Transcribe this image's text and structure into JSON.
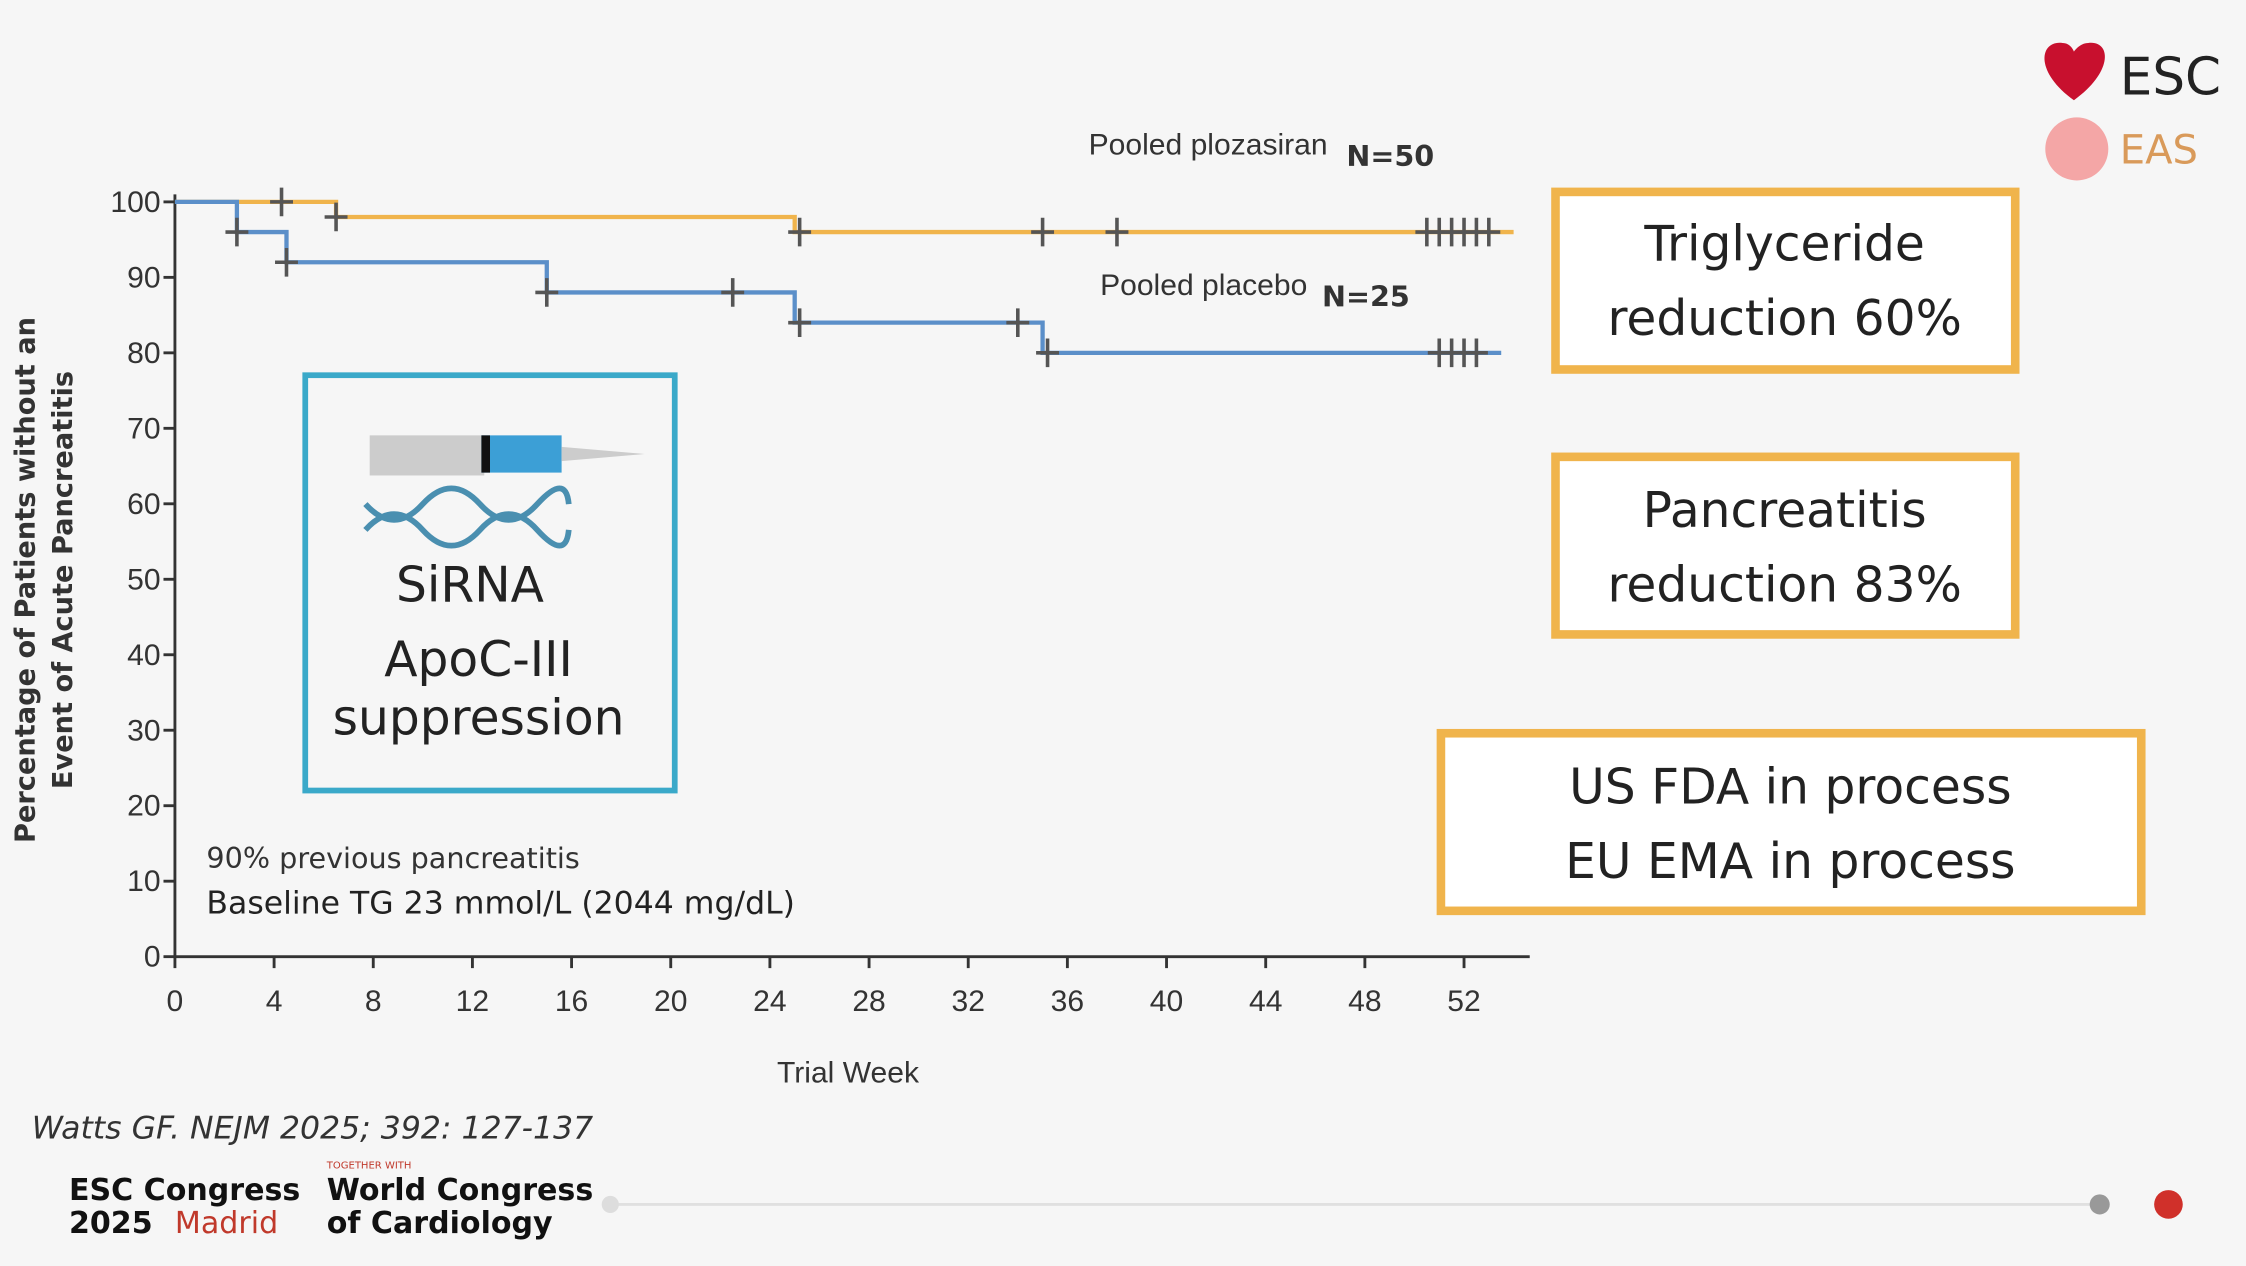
{
  "chart_data": {
    "type": "step-line",
    "ylabel": [
      "Percentage of Patients without an",
      "Event of Acute Pancreatitis"
    ],
    "xlabel": "Trial Week",
    "xlim": [
      0,
      54.65
    ],
    "xticks": [
      0,
      4,
      8,
      12,
      16,
      20,
      24,
      28,
      32,
      36,
      40,
      44,
      48,
      52
    ],
    "ylim": [
      0,
      101
    ],
    "yticks": [
      0,
      10,
      20,
      30,
      40,
      50,
      60,
      70,
      80,
      90,
      100
    ],
    "series": [
      {
        "name": "Pooled plozasiran",
        "n_label": "N=50",
        "color": "#f0b44c",
        "x": [
          0,
          6.5,
          25,
          54
        ],
        "values": [
          100,
          98,
          96,
          96
        ],
        "censored": {
          "x": [
            4.3,
            6.5,
            25.2,
            35,
            38,
            50.5,
            51,
            51.5,
            52,
            52.5,
            53
          ],
          "values": [
            100,
            98,
            96,
            96,
            96,
            96,
            96,
            96,
            96,
            96,
            96
          ]
        }
      },
      {
        "name": "Pooled placebo",
        "n_label": "N=25",
        "color": "#5b8fc9",
        "x": [
          0,
          2.5,
          4.5,
          15,
          25,
          35,
          53.5
        ],
        "values": [
          100,
          96,
          92,
          88,
          84,
          80,
          80
        ],
        "censored": {
          "x": [
            2.5,
            4.5,
            15,
            22.5,
            25.2,
            34,
            35.2,
            51,
            51.5,
            52,
            52.5
          ],
          "values": [
            96,
            92,
            88,
            88,
            84,
            84,
            80,
            80,
            80,
            80,
            80
          ]
        }
      }
    ],
    "annotations": [
      "90% previous pancreatitis",
      "Baseline TG 23 mmol/L (2044 mg/dL)"
    ]
  },
  "sirna_box": {
    "title": "SiRNA",
    "lines": [
      "ApoC-III",
      "suppression"
    ]
  },
  "result_boxes": [
    [
      "Triglyceride",
      "reduction 60%"
    ],
    [
      "Pancreatitis",
      "reduction 83%"
    ],
    [
      "US FDA in process",
      "EU EMA in process"
    ]
  ],
  "citation": "Watts GF. NEJM 2025; 392: 127-137",
  "logos": {
    "esc": "ESC",
    "eas": "EAS"
  },
  "footer": {
    "congress": "ESC Congress",
    "year": "2025",
    "city": "Madrid",
    "together": "TOGETHER WITH",
    "wcc": [
      "World Congress",
      "of Cardiology"
    ]
  }
}
